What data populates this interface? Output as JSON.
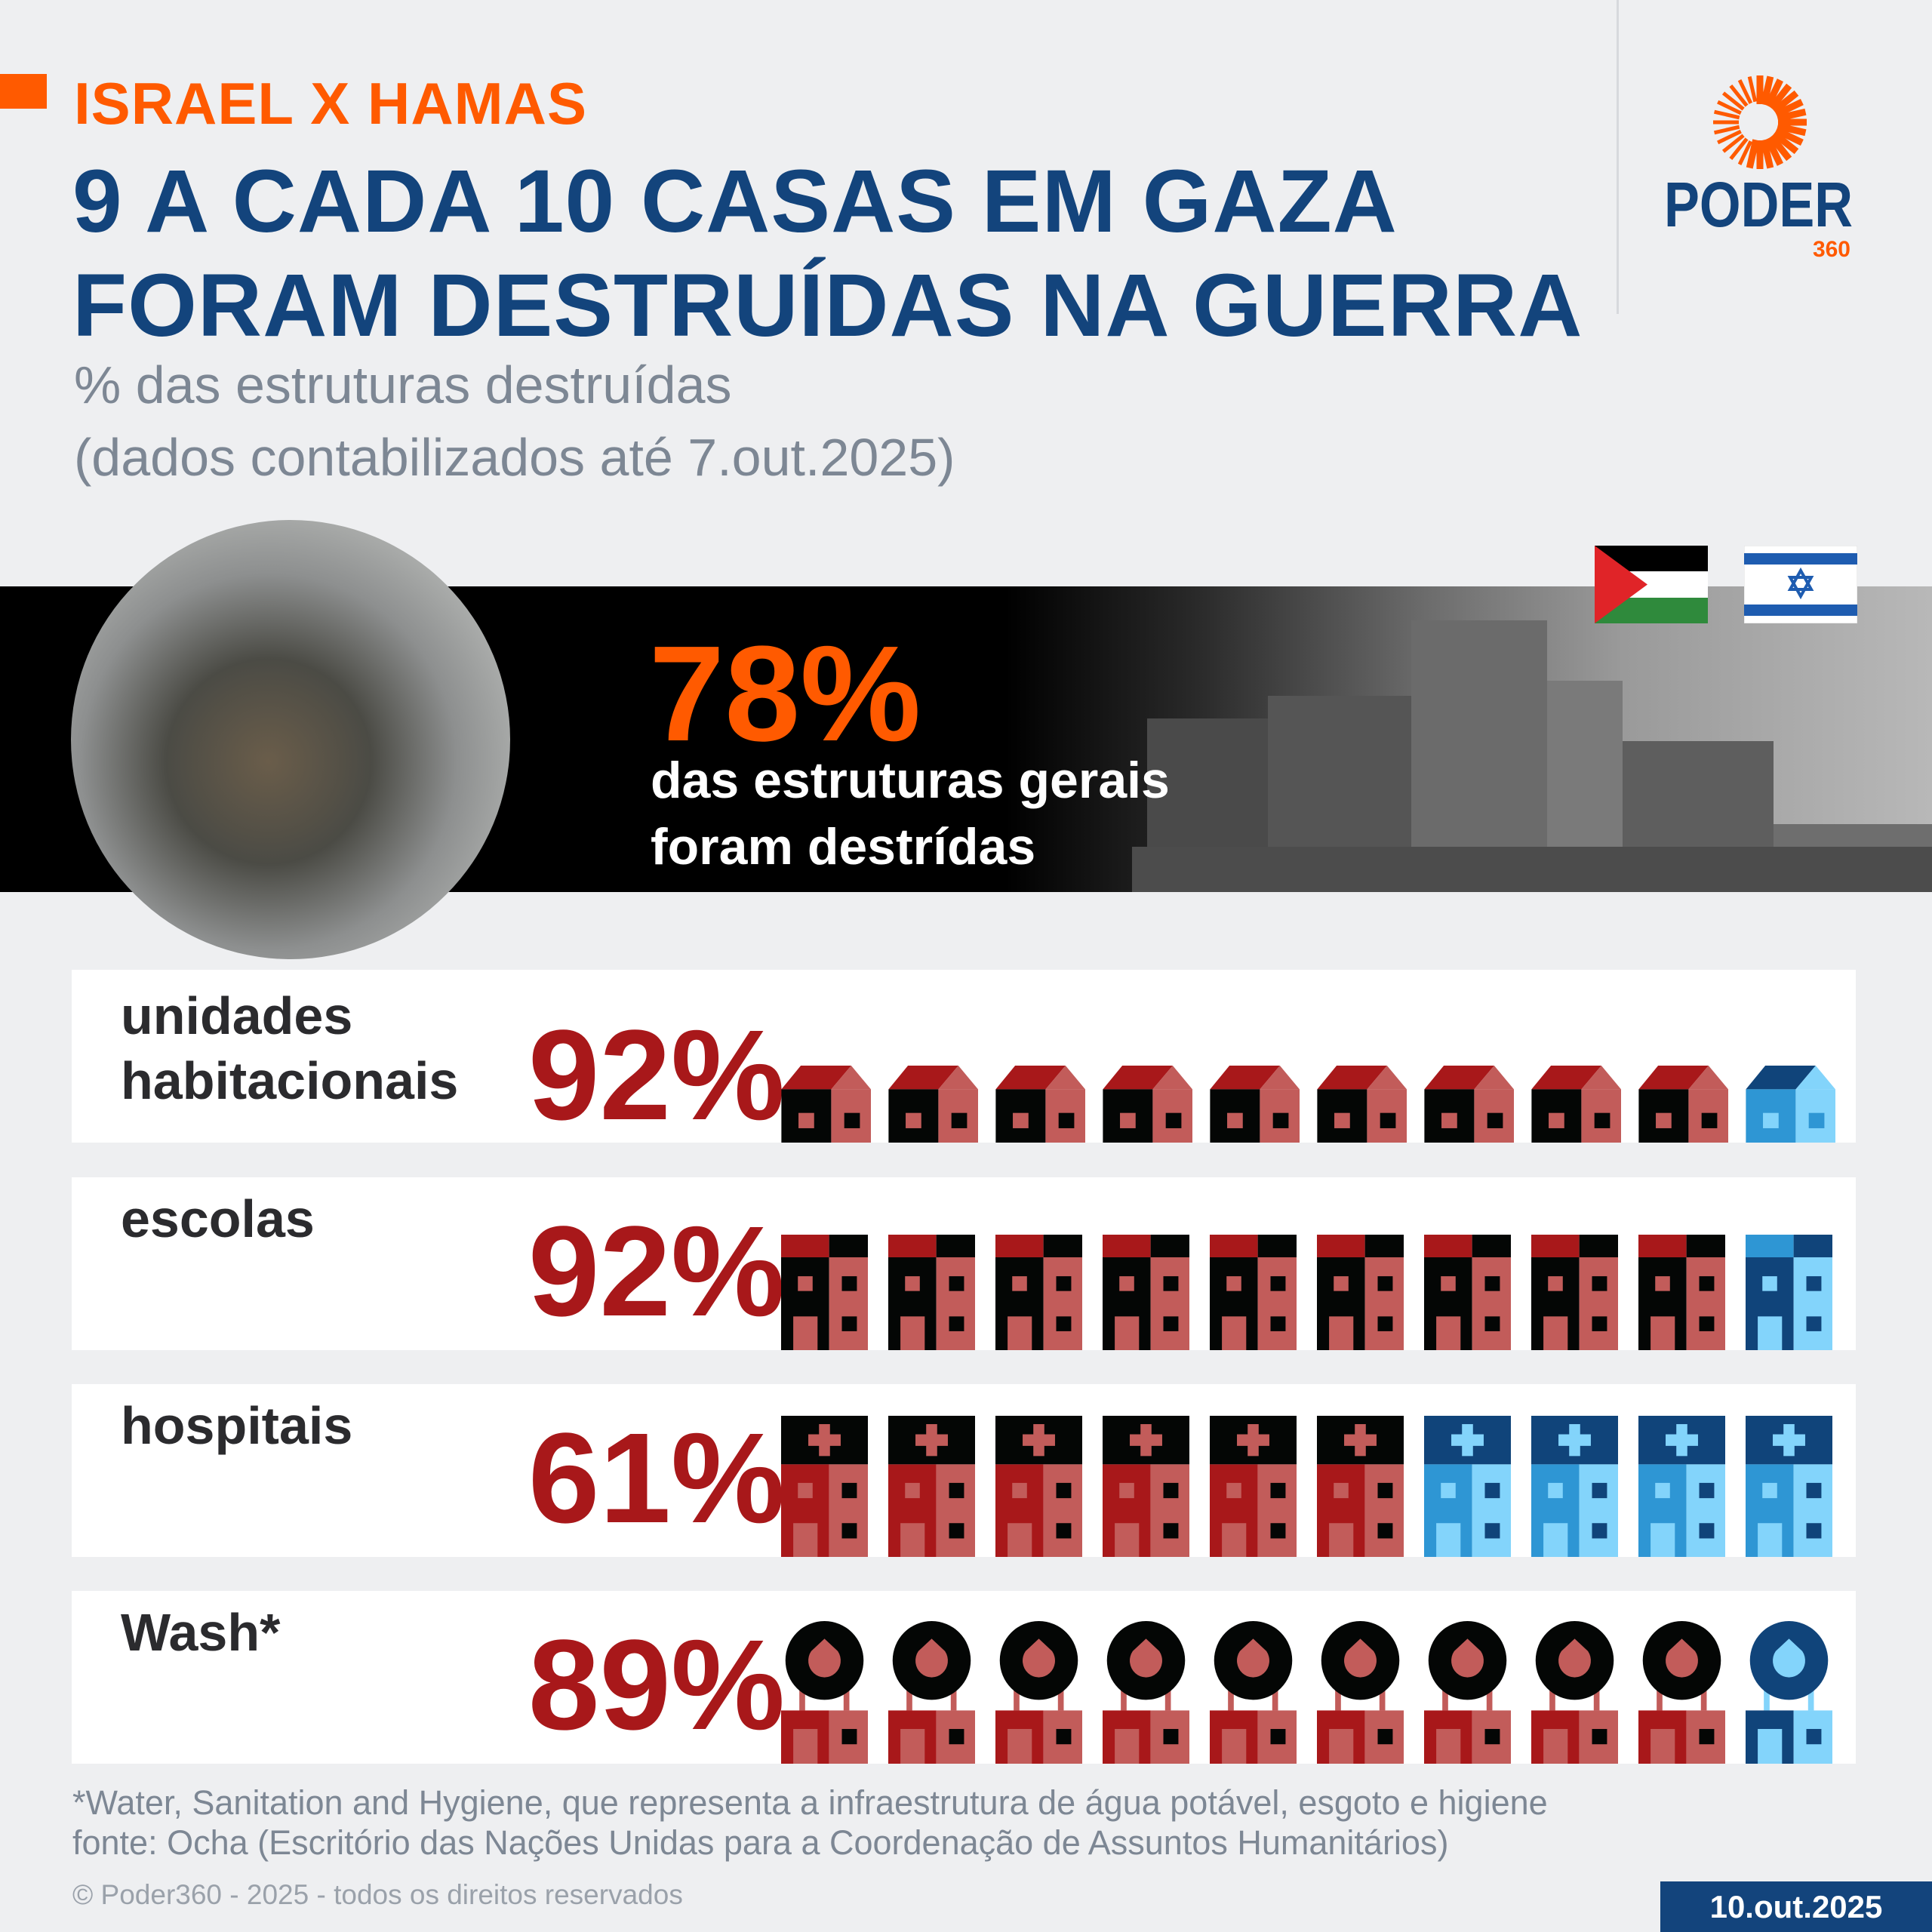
{
  "header": {
    "kicker": "ISRAEL X HAMAS",
    "title_line1": "9 A CADA 10 CASAS EM GAZA",
    "title_line2": "FORAM DESTRUÍDAS NA GUERRA",
    "subtitle_line1": "% das estruturas destruídas",
    "subtitle_line2": "(dados contabilizados até 7.out.2025)"
  },
  "logo": {
    "brand": "PODER",
    "sub": "360"
  },
  "flags": [
    "palestine-flag",
    "israel-flag"
  ],
  "banner": {
    "value": "78%",
    "text_line1": "das estruturas gerais",
    "text_line2": "foram destrídas"
  },
  "colors": {
    "accent": "#ff5a00",
    "navy": "#13447c",
    "destroyed_dark": "#a8181a",
    "destroyed_light": "#c25c5a",
    "destroyed_black": "#040605",
    "intact_navy": "#10447a",
    "intact_mid": "#2e96d4",
    "intact_light": "#83d4fb"
  },
  "chart_data": {
    "type": "pictogram",
    "icons_total": 10,
    "rows": [
      {
        "label_line1": "unidades",
        "label_line2": "habitacionais",
        "value": 92,
        "display": "92%",
        "icon": "house-icon",
        "icons_destroyed": 9
      },
      {
        "label_line1": "escolas",
        "label_line2": "",
        "value": 92,
        "display": "92%",
        "icon": "school-icon",
        "icons_destroyed": 9
      },
      {
        "label_line1": "hospitais",
        "label_line2": "",
        "value": 61,
        "display": "61%",
        "icon": "hospital-icon",
        "icons_destroyed": 6
      },
      {
        "label_line1": "Wash*",
        "label_line2": "",
        "value": 89,
        "display": "89%",
        "icon": "water-facility-icon",
        "icons_destroyed": 9
      }
    ]
  },
  "footer": {
    "note": "*Water, Sanitation and Hygiene, que representa a infraestrutura de água potável, esgoto e higiene",
    "source": "fonte: Ocha (Escritório das Nações Unidas para a Coordenação de Assuntos Humanitários)",
    "copyright": "© Poder360 - 2025 - todos os direitos reservados",
    "date": "10.out.2025"
  }
}
